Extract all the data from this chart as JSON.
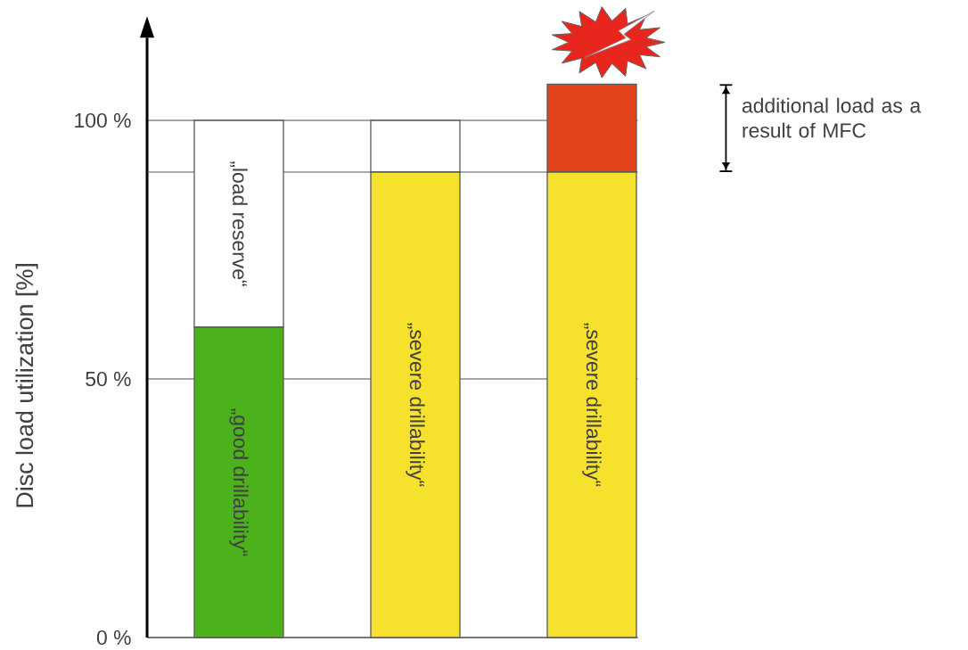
{
  "chart_data": {
    "type": "bar",
    "stacked": true,
    "ylabel": "Disc load utilization [%]",
    "categories": [
      null,
      null,
      null
    ],
    "series": [
      {
        "colors": [
          "#4cb21c",
          "#f6e12c",
          "#f6e12c"
        ],
        "values": [
          60,
          90,
          90
        ],
        "value_labels": [
          "„good drillability“",
          "„severe drillability“",
          "„severe drillability“"
        ]
      },
      {
        "colors": [
          "#ffffff",
          "#ffffff",
          "#e2421c"
        ],
        "values": [
          40,
          10,
          17
        ],
        "value_labels": [
          "„load reserve“",
          null,
          null
        ]
      }
    ],
    "ylim": [
      0,
      116
    ],
    "yticks": [
      {
        "value": 0,
        "label": "0 %"
      },
      {
        "value": 50,
        "label": "50 %"
      },
      {
        "value": 100,
        "label": "100 %"
      }
    ],
    "grid": "y",
    "tick_labels": "y",
    "ref_lines": [
      {
        "axis": "y",
        "value": 90,
        "color": "#555555"
      }
    ],
    "annotations": [
      "additional load as a result of MFC"
    ]
  }
}
